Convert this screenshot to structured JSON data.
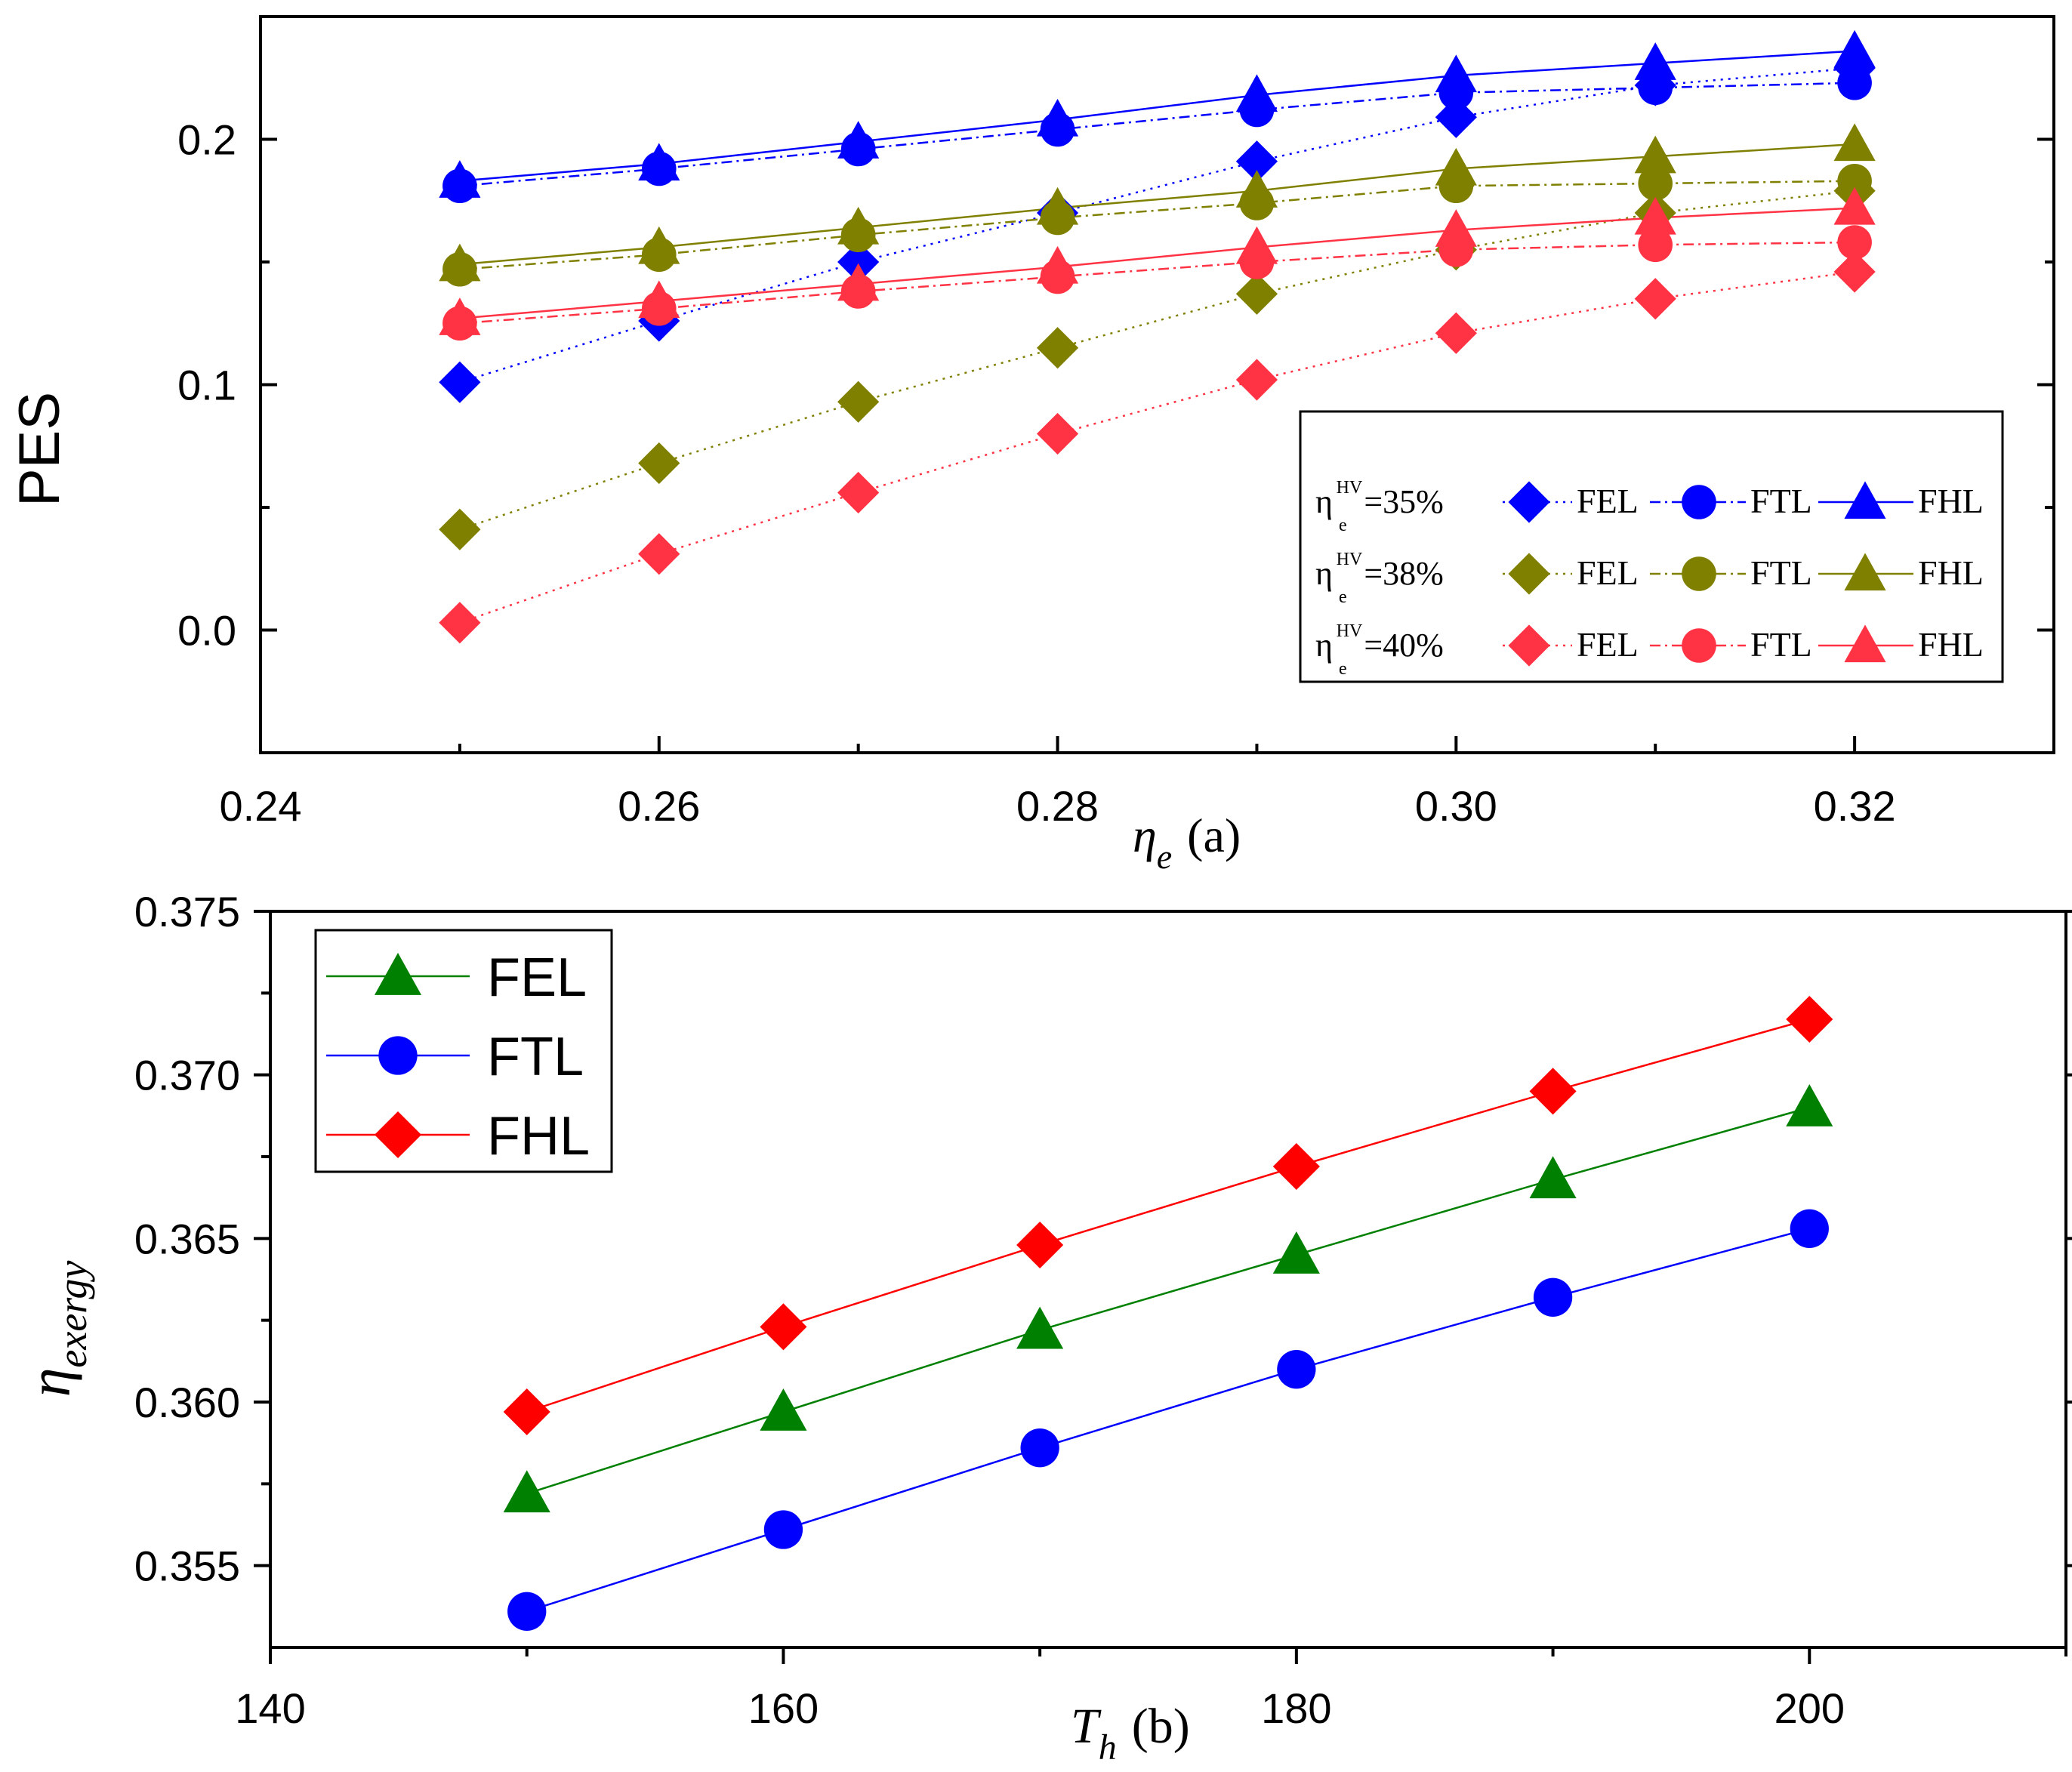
{
  "chart_data": [
    {
      "type": "line",
      "panel": "top",
      "title": "",
      "ylabel": "PES",
      "xlabel_symbol": "η",
      "xlabel_subscript": "e",
      "xlabel_suffix": "(a)",
      "xlim": [
        0.24,
        0.33
      ],
      "ylim": [
        -0.05,
        0.25
      ],
      "xticks": [
        0.24,
        0.26,
        0.28,
        0.3,
        0.32
      ],
      "xtick_labels": [
        "0.24",
        "0.26",
        "0.28",
        "0.30",
        "0.32"
      ],
      "yticks": [
        0.0,
        0.1,
        0.2
      ],
      "ytick_labels": [
        "0.0",
        "0.1",
        "0.2"
      ],
      "x": [
        0.25,
        0.26,
        0.27,
        0.28,
        0.29,
        0.3,
        0.31,
        0.32
      ],
      "legend_position": "lower-right",
      "groups": [
        {
          "label_eta": "η",
          "label_sub": "e",
          "label_sup": "HV",
          "label_value": "=35%",
          "color": "#0000ff",
          "series": [
            {
              "name": "FEL",
              "marker": "diamond",
              "dash": "dotted",
              "values": [
                0.101,
                0.126,
                0.15,
                0.17,
                0.191,
                0.209,
                0.222,
                0.229
              ]
            },
            {
              "name": "FTL",
              "marker": "circle",
              "dash": "dashdot",
              "values": [
                0.181,
                0.188,
                0.196,
                0.204,
                0.212,
                0.219,
                0.221,
                0.223
              ]
            },
            {
              "name": "FHL",
              "marker": "triangle",
              "dash": "solid",
              "values": [
                0.183,
                0.19,
                0.199,
                0.208,
                0.218,
                0.226,
                0.231,
                0.236
              ]
            }
          ]
        },
        {
          "label_eta": "η",
          "label_sub": "e",
          "label_sup": "HV",
          "label_value": "=38%",
          "color": "#808000",
          "series": [
            {
              "name": "FEL",
              "marker": "diamond",
              "dash": "dotted",
              "values": [
                0.041,
                0.068,
                0.093,
                0.115,
                0.137,
                0.155,
                0.17,
                0.179
              ]
            },
            {
              "name": "FTL",
              "marker": "circle",
              "dash": "dashdot",
              "values": [
                0.147,
                0.153,
                0.161,
                0.168,
                0.174,
                0.181,
                0.182,
                0.183
              ]
            },
            {
              "name": "FHL",
              "marker": "triangle",
              "dash": "solid",
              "values": [
                0.149,
                0.156,
                0.164,
                0.172,
                0.179,
                0.188,
                0.193,
                0.198
              ]
            }
          ]
        },
        {
          "label_eta": "η",
          "label_sub": "e",
          "label_sup": "HV",
          "label_value": "=40%",
          "color": "#ff3344",
          "series": [
            {
              "name": "FEL",
              "marker": "diamond",
              "dash": "dotted",
              "values": [
                0.003,
                0.031,
                0.056,
                0.08,
                0.102,
                0.121,
                0.135,
                0.146
              ]
            },
            {
              "name": "FTL",
              "marker": "circle",
              "dash": "dashdot",
              "values": [
                0.125,
                0.131,
                0.138,
                0.144,
                0.15,
                0.155,
                0.157,
                0.158
              ]
            },
            {
              "name": "FHL",
              "marker": "triangle",
              "dash": "solid",
              "values": [
                0.127,
                0.134,
                0.141,
                0.148,
                0.156,
                0.163,
                0.168,
                0.172
              ]
            }
          ]
        }
      ]
    },
    {
      "type": "line",
      "panel": "bottom",
      "title": "",
      "ylabel_symbol": "η",
      "ylabel_subscript": "exergy",
      "xlabel_symbol": "T",
      "xlabel_subscript": "h",
      "xlabel_suffix": "(b)",
      "xlim": [
        140,
        210
      ],
      "ylim": [
        0.3525,
        0.375
      ],
      "xticks": [
        140,
        160,
        180,
        200
      ],
      "xtick_labels": [
        "140",
        "160",
        "180",
        "200"
      ],
      "yticks": [
        0.355,
        0.36,
        0.365,
        0.37,
        0.375
      ],
      "ytick_labels": [
        "0.355",
        "0.360",
        "0.365",
        "0.370",
        "0.375"
      ],
      "x": [
        150,
        160,
        170,
        180,
        190,
        200
      ],
      "legend_position": "top-left",
      "series": [
        {
          "name": "FEL",
          "color": "#008000",
          "marker": "triangle",
          "values": [
            0.3572,
            0.3597,
            0.3622,
            0.3645,
            0.3668,
            0.369
          ]
        },
        {
          "name": "FTL",
          "color": "#0000ff",
          "marker": "circle",
          "values": [
            0.3536,
            0.3561,
            0.3586,
            0.361,
            0.3632,
            0.3653
          ]
        },
        {
          "name": "FHL",
          "color": "#ff0000",
          "marker": "diamond",
          "values": [
            0.3597,
            0.3623,
            0.3648,
            0.3672,
            0.3695,
            0.3717
          ]
        }
      ]
    }
  ]
}
